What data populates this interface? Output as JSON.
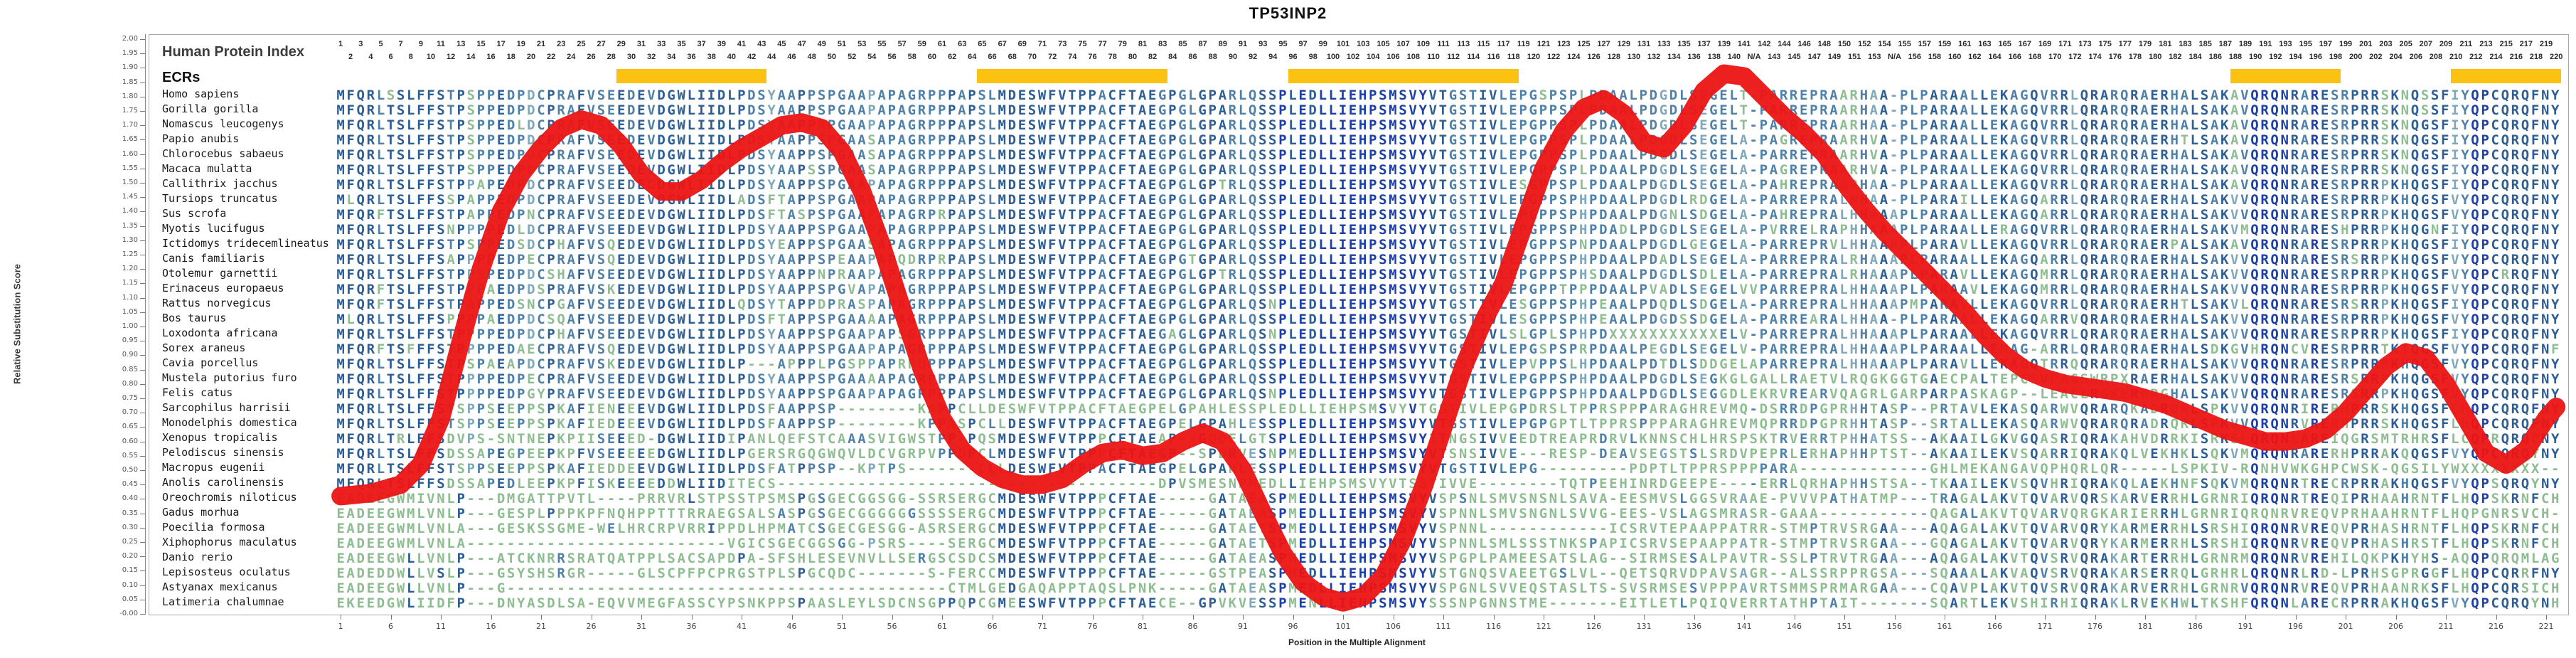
{
  "title": "TP53INP2",
  "header": {
    "protein_index_label": "Human Protein Index",
    "ecrs_label": "ECRs"
  },
  "axes": {
    "y_label": "Relative Substitution Score",
    "x_label": "Position in the Multiple Alignment",
    "y_min": 0.0,
    "y_max": 2.0,
    "y_tick_step": 0.05,
    "x_tick_start": 1,
    "x_tick_step": 5,
    "x_tick_end": 221
  },
  "colors": {
    "curve_red": "#ec1414",
    "ecr_yellow": "#fcc211",
    "conservation_levels": [
      "#1c40a8",
      "#2d5f94",
      "#4f81a8",
      "#7fa9ba",
      "#8ebd92"
    ],
    "axis_gray": "#aaaaaa",
    "number_text": "#2b2b2b"
  },
  "alignment": {
    "n_columns": 222,
    "na_label": "N/A",
    "human_gap_columns": [
      142,
      156
    ],
    "human_max_index": 220,
    "ecr_regions_cols": [
      [
        29,
        43
      ],
      [
        65,
        83
      ],
      [
        96,
        118
      ],
      [
        190,
        200
      ],
      [
        212,
        222
      ]
    ],
    "species": [
      {
        "name": "Homo sapiens",
        "s1": "MFQRLSSLFFSTPSPPEDPDCPRAFVSEEDEVDGWLIIDLPDSYAAPPSPGAAPAPAGRPP",
        "s2": "PAPSLMDESWFVTPPACFTAEGPGLGPARLQSSPLEDLLIEHPSMSVYVTGSTIVLEPGSPSPLPDAALPDGDLSEGELT-",
        "s3": "PARREPRAARHAA-PLPARAALLEKAGQVRRLQRARQRAERHALSAKAVQRQNRARESRPRRSKNQSSFIYQPCQRQFNY"
      },
      {
        "name": "Gorilla gorilla",
        "s1": "MFQRLTSLFFSTPSPPEDPDCPRAFVSEEDEVDGWLIIDLPDSYAAPPSPGAAPAPAGRPP",
        "s2": "PAPSLMDESWFVTPPACFTAEGPGLGPARLQSSPLEDLLIEHPSMSVYVTGSTIVLEPGPPSPLPDAALPDGDLSEGELT-",
        "s3": "PARREPRAARHAA-PLPARAALLEKAGQVRRLQRARQRAERHALSAKAVQRQNRARESRPRRSKNQSSFIYQPCQRQFNY"
      },
      {
        "name": "Nomascus leucogenys",
        "s1": "MFQRLTSLFFSTPSPPEDLDCPRAFVSEEDEVDGWLIIDLPDSYAAPPRPGAAPAPAGRPP",
        "s2": "PAPSLMDESWFVTPPACFTAEGPGLGPARLQSSPLEDLLIEHPSMSVYVTGSTIVLEPGPPSPLPDAALPDGDLSEGELT-",
        "s3": "PARREPRAARHAA-PLPARAALLEKAGQVRRLQRARQRAERHALSAKAVQRQNRARESRPRRSKNQGSFIYQPCQRQFNY"
      },
      {
        "name": "Papio anubis",
        "s1": "MFQRLTSLFFSTPSPPEDPDCPRAFVSEEDEVDGWLIIDLPDSYAAPPSPGAASAPAGRPP",
        "s2": "PAPSLMDESWFVTPPACFTAEGPGLGPARLQSSPLEDLLIEHPSMSVYVTGSTIVLEPGPPSPLPDAALPDGDLSEGELA-",
        "s3": "PAGREPRAARHVA-PLPARAALLEKAGQVRRLQRARQRAERHTLSAKAVQRQNRARESRPRRSKNQGSFIYQPCQRQFNY"
      },
      {
        "name": "Chlorocebus sabaeus",
        "s1": "MFQRLTSLFFSTPSPPEDPDCPRAFVSEEDEVDGWLIIDLPDSYAAPPSPGAASAPAGRPP",
        "s2": "PAPSLMDESWFVTPPACFTAEGPGLGPARLQSSPLEDLLIEHPSMSVYVTGSTIVLEPGPPSPLPDAALPDGDLSEGELA-",
        "s3": "PARREPRAARHVA-PLPARAALLEKAGQVRRLQRARQRAERHALSAKAVQRQNRARESRPRRSKNQGSFIYQPCQRQFNY"
      },
      {
        "name": "Macaca mulatta",
        "s1": "MFQRLTSLFFSTPSPPEDPDCPRAFVSEEDEVDGWLIIDLPDSYAAPSSPGAASAPAGRPP",
        "s2": "PAPSLMDESWFVTPPACFTAEGPGLGPARLQSSPLEDLLIEHPSMSVYVTGSTIVLEPGPPSPLPDAALPDGDLSEGELA-",
        "s3": "PAGREPRAARHVA-PLPARAALLEKAGQVRRLQRARQRAERHALSAKAVQRQNRARESRPRRSKNQGSFIYQPCQRQFNY"
      },
      {
        "name": "Callithrix jacchus",
        "s1": "MFQRLTSLFFSTPPAPEDPDCPRAFVSEEDEGDGWLIIDLPDSYAAPPSPGAAPAPAGRPP",
        "s2": "PAPSLMDESWFVTPPACFTAEGPGLGPTRLQSSPLEDLLIEHPSMSVYVTGSTIVLESGPPSPLPDAALPDGDLSEGELA-",
        "s3": "PAHREPRAARHAA-PLPARAALLEKAGQVRRLQRARQRAERHALSAKAVQRQNRARESRPRRPKHQGSFIYQPCQRQFNY"
      },
      {
        "name": "Tursiops truncatus",
        "s1": "MLQRLTSLFFSSPAPPEDPDCPRAFVSEEDEVDGWLIIDLADSFTAPPSPGAAPAPAGRPP",
        "s2": "PAPSLMDESWFVTPPACFTAEGPGLGPARLQSSPLEDLLIEHPSMSVYVTGSTIVLEPGPPSPHPDAALPDGDLRDGELA-",
        "s3": "PARREPRALHHAA-PLPARAILLEKAGQARRLQRARQRAERHALSAKVVQRQNRARESRPRRPKHQGSFVYQPCQRQFNY"
      },
      {
        "name": "Sus scrofa",
        "s1": "MFQRFTSLFFSTPAPPEDPNCPRAFVSEEDEVDGWLIIDLPDSFTASPSPGAAPAPAGRPR",
        "s2": "PAPSLMDESWFVTPPACFTAEGPGLGPARLQSSPLEDLLIEHPSMSVYVTGSTIVLEPGPPSPHPDAALPDGNLSDGELA-",
        "s3": "PAHREPRALHHAAAPLPARAALLEKAGQARRLQRARQRAERHALSAKVVQRQNRARESRPRRPKHQGSFVYQPCQRQFNY"
      },
      {
        "name": "Myotis lucifugus",
        "s1": "MFQRLTSLFFSNPPPPEDLDCPRAFVSEEDEVDGWLIIDLPDSYAAPPSPGAAPAPAGRPP",
        "s2": "PAPSLMDESWFVTPPACFTAEGPGLGPARLQSSPLEDLLIEHPSMSVYVTGSTIVLEPGPPSPHPDADLPDGDLSEGELA-",
        "s3": "PVRRELRAPHHAAAPLPARAALLERAGQVRRLQRARQRAERHALSAKVMQRQNRARESHPRRPKHQGNFIYQPCQRQFNY"
      },
      {
        "name": "Ictidomys tridecemlineatus",
        "s1": "MFQRLTSLFFSTPSPPEDSDCPHAFVSQEDEVDGWLIIDLPDSYEAPPSPGAASAPAGRPP",
        "s2": "PAPSLMDESWFVTPPACFTAEGPGLGPARLQSSPLEDLLIEHPSMSVYVTGSTIVLEPGPPSPNPDAALPDGDLGEGELA-",
        "s3": "PARREPRVLHHAAAPLPARAVLLEKAGQVRRLQRARQRAERPALSAKAVQRQNRARESRPRRPKHQGSFIYQPCQRQFNY"
      },
      {
        "name": "Canis familiaris",
        "s1": "MFQRLTSLFFSAPPPPEDPECPRAFVSQEDEVDGWLIIDLPDSYAAPPSPEAAPAPQDRPR",
        "s2": "PAPSLMDESWFVTPPACFTAEGPGTGPARLQSSPLEDLLIEHPSMSVYVTGSTIVLEPGPPSPHPDAALPDADLSEGELA-",
        "s3": "PARREPRALRHAAAPLPARAALLEKAGQARRLQRARQRAERHALSAKVVQRQNRARESRSRRPKHQGSFVYQPCQRQFNY"
      },
      {
        "name": "Otolemur garnettii",
        "s1": "MFQRLTSLFFSTPPSPEDPDCSHAFVSEEDEVDGWLIIDLPDSYAAPPNPRAAPAPAGRPP",
        "s2": "PAPSLMDESWFVTPPACFTAEGPGLGPTRLQSSPLEDLLIEHPSMSVYVTGSTIVLEPGPPSPHSDAALPDGDLSDLELA-",
        "s3": "PARREPRALRHAAAPLPARAVLLEKAGQMRRLQRARQRAERHALSAKVVQRQNRARESRPRRPKHQGSFVYQPCRRQFNY"
      },
      {
        "name": "Erinaceus europaeus",
        "s1": "MFQRFTSLFFSTPPPAEDPDSPRAFVSKEDEVDGWLIIDLPDSYAAPPSPGVAPAPAGRPP",
        "s2": "PAPSLMDESWFVTPPACFTAEGPGLGPARLQSSPLEDLLIEHPSMSVYVTGSTIVLEPGPPTPPPDAALPVADLSEGELVV",
        "s3": "PARREPRALHHAAAPLPARAAVLEKAGQMRRLQRARQRAERHALSAKVVQRQNRARESRPRRPKHQGSFVYQPCQRQFNY"
      },
      {
        "name": "Rattus norvegicus",
        "s1": "MFQRFTSLFFSTPAPPEDSNCPGAFVSEEDEVDGWLIIDLQDSYTAPPDPRASPAPAGRPP",
        "s2": "PAPSLMDESWFVTPPACFTAEGPGLGPARLQSNPLEDLLIEHPSMSVYVTGSTIVLESGPPSPHPEAALPDQDLSDGELA-",
        "s3": "PARREPRALHHAAAPMPARAVLLEKAGQVRRLQRARQRAERHTLSAKVLQRQNRARESRSRRPKHQGSFIYQPCQRQFNY"
      },
      {
        "name": "Bos taurus",
        "s1": "MLQRLTSLFFSPPPPAEDPDCSQAFVSEEDEVDGWLIIDLPDSFTAPPSPGAAAAPAGRPP",
        "s2": "PAPSLMDESWFVTPPACFTAEGPGLGPARLQSSPLEDLLIEHPSMSVYVTGSTIVLESGPPSPHPEAALPDGDSSDGELA-",
        "s3": "PARREARALHHAA-PLPARAALLEKAGQARRVQRARQRAERHALSAKVVQRQNRARESRPRRPKHQGSFVYQPCQRQFNY"
      },
      {
        "name": "Loxodonta africana",
        "s1": "MFQRLTSLFFSTPPPPEDPDCPHAFVSEEDEVDGWLIIDLPDSYAAPPSPGAAPAPSGRPP",
        "s2": "PAPSLMDESWFVTPPACFTAEGAGLGPARLQSNPLEDLLIEHPSMSVYVTGSTIVLSLGPLSPHPDXXXXXXXXXXXELV-",
        "s3": "PARREPRALHHAAAPLPARAALLEKAGQVRRLQRARQRAERHALSAKVVQRQNRARESRPRRPKHQGSFIYQPCQRQFNY"
      },
      {
        "name": "Sorex araneus",
        "s1": "MFQRFTSFFFSTPPPPEDAECPRAFVSQEDEVDGWLIIDLPDSYAAPPSPGAAPAPAGRPP",
        "s2": "PAPSLMDESWFVTPPACFTAEGPGLGPARLQSSPLEDLLIEHPSMSVYVTGSTIVLEPGSPSPRPDAALPEGDLSEGELV-",
        "s3": "PARREPRALHHAAAPLPARAALLEMAG-ARRLQRARQRAERHALSDKGVHRQNCVRESRPRRTKTQGSFVYQPCQRQFNF"
      },
      {
        "name": "Cavia porcellus",
        "s1": "MFQRLTSLFFSTPSPAEAPDCPRAFVSKEDEVDGWLIIDLP---APPPLPGSPPAPRRQPP",
        "s2": "PAPSLMDESWFVTPPACFTAEGPGLGPARLQSSPLEDLLIEHPSMSVYVTGSTIVLEPVPPSLHPDAALPDTDLSDDGELA",
        "s3": "PARREPRALHHAAAPLPARAVLLEKAGQTRRQQRARQRAERHALSAKVVQRQNRARESRPRRPKHQGSFVYQPCQRQFNY"
      },
      {
        "name": "Mustela putorius furo",
        "s1": "MFQRLTSLFFSTPPPPEDPECPRAFVSEEDEVDGWLIIDLPDSYAAPPSPGAAAAPAGRPP",
        "s2": "PAPSLMDESWFVTPPACFTAEGPGLGPARLQSSPLEDLLIEHPSMSVYVTGSTIVLEPGPPSPHPDAALPDGDLSEGKGLG",
        "s3": "ALLRAETVLRQGKGGTGAECPALTEPCSVPAGSWRPXRAERHALSAKVVQRQNRARESRSRRPKHQGSFVYQPCQRQFNY"
      },
      {
        "name": "Felis catus",
        "s1": "MFQRLTSLFFSTPPPPEDPGYPRAFVSEEDEVDGWLIIDLPDSYAAPPSPGAAPAPAGRPP",
        "s2": "PAPSLMDESWFVTPPACFTAEGPGLGPARLQSNPLEDLLIEHPSMSVYVTGSTIVLEPGPPSPHPDAALPDGDLSEGGDLE",
        "s3": "KRVREARVQAGRLGARPARPASKAGP--LEACLRGKERGRGHALSAKVVQRQNRARESRSRRPKHQGSFVYQPCQRQFNY"
      },
      {
        "name": "Sarcophilus harrisii",
        "s1": "MFQRLTSLFFSTSPPSEEPPSPKAFIENEEEVDGWLIIDLPDSFAAPPSP--------KAP",
        "s2": "PCLLDESWFVTPPACFTAEGPELGPAHLESSPLEDLLIEHPSMSVYVTGSTIVLEPGPDRSLTPPRSPPPARAGHREVMQ-",
        "s3": "DSRRDPGPRHHTASP--PRTAVLEKASQARWVQRARQKADRQRLSPKVVQRQNRIRERHPRRSKHQGSFLHQPCQRQFNY"
      },
      {
        "name": "Monodelphis domestica",
        "s1": "MFQRLTSLFFSTSPPSEEPPSPKAFIEDEEEVDGWLIIDLPDSFAAPPSP--------KPP",
        "s2": "ASPCLLDESWFVTPPACFTAEGPELGPAHLESSPLEDLLIEHPSMSVYVTGSTIVLEPGPGPTLTPPRSPPPARAGHREVM",
        "s3": "QPRRDPGPRHHTASP--SRTALLEKASQARWVQRARQRADRQRLSPKVVQRQNRVRERHPRRSKHQGSFLHQPCQRQFNY"
      },
      {
        "name": "Xenopus tropicalis",
        "s1": "MFQRLTRLFFSDVPS-SNTNEPKPIISEEED-DGWLIIDIPANLQEFSTCAAASVIGWSTP",
        "s2": "P-PQSMDESWFVTPPPCFTAEAP--GQDELGTSPLEDLLIEHPSMSVYITNGSIVVEEDTREAPRDRVLKNNSCHLHRSPS",
        "s3": "KTRVERRTPHHATSS--AKAAILGKVGQASRIQRAKAHVDRRKISRKSLQRQNLAREIQGRSMTRHRSFLCQPRQRQCNY"
      },
      {
        "name": "Pelodiscus sinensis",
        "s1": "MFQRLTSLFFSDSSAPEGPEEPKPFVSEEEEEDGWLIIDLPGERSRGQGWQVLDCVGRPVP",
        "s2": "PDPCLMDESWFVTPPPCFTAEGP--SPDRVESNPMEDLLIEHPSMSVYVTSNSIVVE---RESP-DEAVSEGSTSLSRDVP",
        "s3": "EPRLERHAPHHPTST--AKAAILEKVSQARRIQRAKQLVEKHKLSQKVMQRQNRARERHPRRAKQQGSFVYQPCQRQYNY"
      },
      {
        "name": "Macropus eugenii",
        "s1": "MFQRLTSLFFSTSPPSEEPPSPKAFIEDDEEVDGWLIIDLPDSFATPPSP--KPTPS----",
        "s2": "---CLLDESWFVTPPACFTAEGPELGPAHLESSPLEDLLIEHPSMSVYVTGSTIVLEPG---------PDPTLTPPRSPPP",
        "s3": "PARA-------------GHLMEKANGAVQPHQRLQR-----LSPKIV-RQNHVWKGHPCWSK-QGSILYWXXXXXXXX--"
      },
      {
        "name": "Anolis carolinensis",
        "s1": "MFQRLTSLFFSDSSAPEDLEEPKPFISKEEEEDDWLIIDITECS-----------------",
        "s2": "---------------------DPVSMESNPMEDLLIEHPSMSVYVTSSTIVVE--------TQTPEEHINRDGEEPE----",
        "s3": "ERRLQRHAPHHSTSA--TKAAILEKVSQVHRIQRAKQLAEKHNFSQKVMQRQNRTRECRPRRAKHQGSFVYQPSQRQYNY"
      },
      {
        "name": "Oreochromis niloticus",
        "s1": "EADEEGWMIVNLP---DMGATTPVTL----PRRVRLSTPSSTPSMSPGSGECGGSGG-SSR",
        "s2": "SERGCMDESWFVTPPPCFTAE-----GATAEASPMEDLLIEHPSMSVYVSPSNLSMVSNSNLSAVA-EESMVSLGGSVRAA",
        "s3": "E-PVVVPATHATMP---TRAGALAKVTQVARVQRSKARVERRHLGRNRIQRQNRTREQIPRHAAHRNTFLHQPSKRNFCH"
      },
      {
        "name": "Gadus morhua",
        "s1": "EADEEGWMLVNLP---GESPLPPPKPFNQHPPTTTRRAEGSALSASPGSGECGGGGGGSSS",
        "s2": "SERGCMDESWFVTPPPCFTAE-----GATAEASPMEDLLIEHPSMSVYVSPNNLSMVSNGNLSVVG-EES-VSLAGSMRAS",
        "s3": "R-GAAA-----------QAGALAKVTQVARVQRGKARIERRHLGRNRIQRQNRVREQVPRHAAHRNTFLHQPGNRSVCH-"
      },
      {
        "name": "Poecilia formosa",
        "s1": "EADEEGWMLVNLA---GESKSSGME-WELHRCRPVRRIPPDLHPMATCSGECGESGG-ASR",
        "s2": "SERGCMDESWFVTPPPCFTAE-----GATAETSPMEDLLIEHPSMSVYVSPNNL------------ICSRVTEPAAPPATR",
        "s3": "R-STMPTRVSRGAA---AQAGALAKVTQVARVQRYKARMERRHLSRSHIQRQNRVREQVPRHASHRNTFLHQPSKRNFCH"
      },
      {
        "name": "Xiphophorus maculatus",
        "s1": "EADEEGWMLVNLA--------------------------VGICSGECGGSGG-PSRS----",
        "s2": "SERGCMDESWFVTPPPCFTAE-----GATAETSPMEDLLIEHPSMSVYVSPNNLSMLSSSTNKSPAPICSRVSEPAAPPAT",
        "s3": "R-STMPTRVSRGAA---GQAGALAKVTQVARVQRYKARMERRHLSRSHIQRQNRVREQVPRHASHRSTFLHQPSKRNFCH"
      },
      {
        "name": "Danio rerio",
        "s1": "EADEEGWLLVNLP---ATCKNRRSRATQATPPLSACSAPDPA-SFSHLESEVNVLLSERGS",
        "s2": "CSDCSMDESWFVTPPPCFTAE-----GATAEASPMEDLLIEHPSMSVYVSPGPLPAMEESATSLAG--SIRMSESALPAVT",
        "s3": "R-SSLPTRVTRGAA---AQAGALAKVTQVSRVQRAKARTERRHLGRNRMQRQNRVREHILQKPKHYHS-AQQPQRQMLAG"
      },
      {
        "name": "Lepisosteus oculatus",
        "s1": "EADEDDWLLVSLP---GSYSHSRGR-----GLSCPFPCPRGSTPLSPGCQDC-------S-",
        "s2": "FERCCMDESWFVTPPPCFTAE-----GSTPEASPMEDLLIEHPSMSVYVSTGNQSVAEETGSLVL--QETSQRVDPAVSAG",
        "s3": "R--ALSSRPPRGSA---SQAAALAKVAQVSRVQRAKARSERRQLGRHRLQRQNRLRD-LPRHSGPRGGFLHQPCQRRFNY"
      },
      {
        "name": "Astyanax mexicanus",
        "s1": "EADEEGWLLVNLP---G--------------------------------------------",
        "s2": "CTMLGEDGAQAPPTAQSLPNK-----GATAEASPMEDLLIEHPSMSVYVSPGNLSVVEQSTASLTS-SVSRMSESVPPPAV",
        "s3": "RTSMMSPRMARGAA---CQAVPLAKVTQVSRVQRAKARVERRHLGRNRVQRQNRVREQVPRHAANRKSFLHQPCQRSICH"
      },
      {
        "name": "Latimeria chalumnae",
        "s1": "EKEEDGWLIIDFP---DNYASDLSA-EQVVMEGFASSCYPSNKPPSPAASLEYLSDCNSGP",
        "s2": "PQPCGMEESWFVTPPPCFTAECE--GPVKVESSPMENLLIEHPSMSVYSSSNPGNNSTME-------EITLETLPQIQVER",
        "s3": "RTATHPTAIT-------SQARTLEKVSHIRHIQRAKLRVEKHWLTKSHFQRQNLARECRPRRAKHQGSFVYQPCQRQYNH"
      }
    ]
  },
  "chart_data": {
    "type": "line",
    "title": "TP53INP2",
    "xlabel": "Position in the Multiple Alignment",
    "ylabel": "Relative Substitution Score",
    "ylim": [
      0,
      2
    ],
    "xlim": [
      1,
      222
    ],
    "grid": false,
    "legend": "none",
    "line_color": "#ec1414",
    "ecr_regions": [
      [
        29,
        43
      ],
      [
        65,
        83
      ],
      [
        96,
        118
      ],
      [
        190,
        200
      ],
      [
        212,
        222
      ]
    ],
    "x": [
      1,
      4,
      7,
      9,
      11,
      13,
      15,
      17,
      19,
      21,
      23,
      25,
      27,
      29,
      31,
      33,
      35,
      37,
      39,
      41,
      43,
      45,
      47,
      49,
      51,
      53,
      55,
      57,
      59,
      61,
      63,
      65,
      67,
      69,
      71,
      73,
      75,
      77,
      79,
      81,
      83,
      85,
      87,
      89,
      91,
      93,
      95,
      97,
      99,
      101,
      103,
      105,
      107,
      109,
      111,
      113,
      115,
      117,
      119,
      121,
      123,
      125,
      127,
      129,
      131,
      133,
      135,
      137,
      139,
      141,
      143,
      145,
      147,
      149,
      151,
      153,
      155,
      157,
      159,
      161,
      163,
      165,
      167,
      169,
      171,
      173,
      175,
      177,
      179,
      181,
      183,
      185,
      187,
      189,
      191,
      193,
      195,
      197,
      199,
      201,
      203,
      205,
      207,
      209,
      211,
      213,
      215,
      217,
      219,
      221,
      222
    ],
    "y": [
      0.41,
      0.42,
      0.45,
      0.52,
      0.68,
      0.95,
      1.2,
      1.4,
      1.53,
      1.62,
      1.69,
      1.72,
      1.7,
      1.63,
      1.53,
      1.47,
      1.47,
      1.51,
      1.57,
      1.62,
      1.66,
      1.7,
      1.71,
      1.69,
      1.61,
      1.47,
      1.28,
      1.06,
      0.85,
      0.68,
      0.57,
      0.51,
      0.47,
      0.45,
      0.45,
      0.47,
      0.52,
      0.56,
      0.57,
      0.55,
      0.56,
      0.6,
      0.63,
      0.6,
      0.5,
      0.35,
      0.21,
      0.11,
      0.06,
      0.04,
      0.06,
      0.13,
      0.26,
      0.44,
      0.65,
      0.86,
      1.02,
      1.15,
      1.35,
      1.55,
      1.68,
      1.76,
      1.79,
      1.74,
      1.64,
      1.62,
      1.7,
      1.82,
      1.88,
      1.87,
      1.8,
      1.73,
      1.67,
      1.6,
      1.5,
      1.41,
      1.33,
      1.26,
      1.19,
      1.12,
      1.05,
      0.97,
      0.9,
      0.85,
      0.82,
      0.8,
      0.79,
      0.78,
      0.77,
      0.75,
      0.73,
      0.7,
      0.67,
      0.64,
      0.62,
      0.6,
      0.6,
      0.61,
      0.64,
      0.7,
      0.78,
      0.86,
      0.91,
      0.89,
      0.8,
      0.68,
      0.56,
      0.52,
      0.57,
      0.68,
      0.72
    ]
  }
}
